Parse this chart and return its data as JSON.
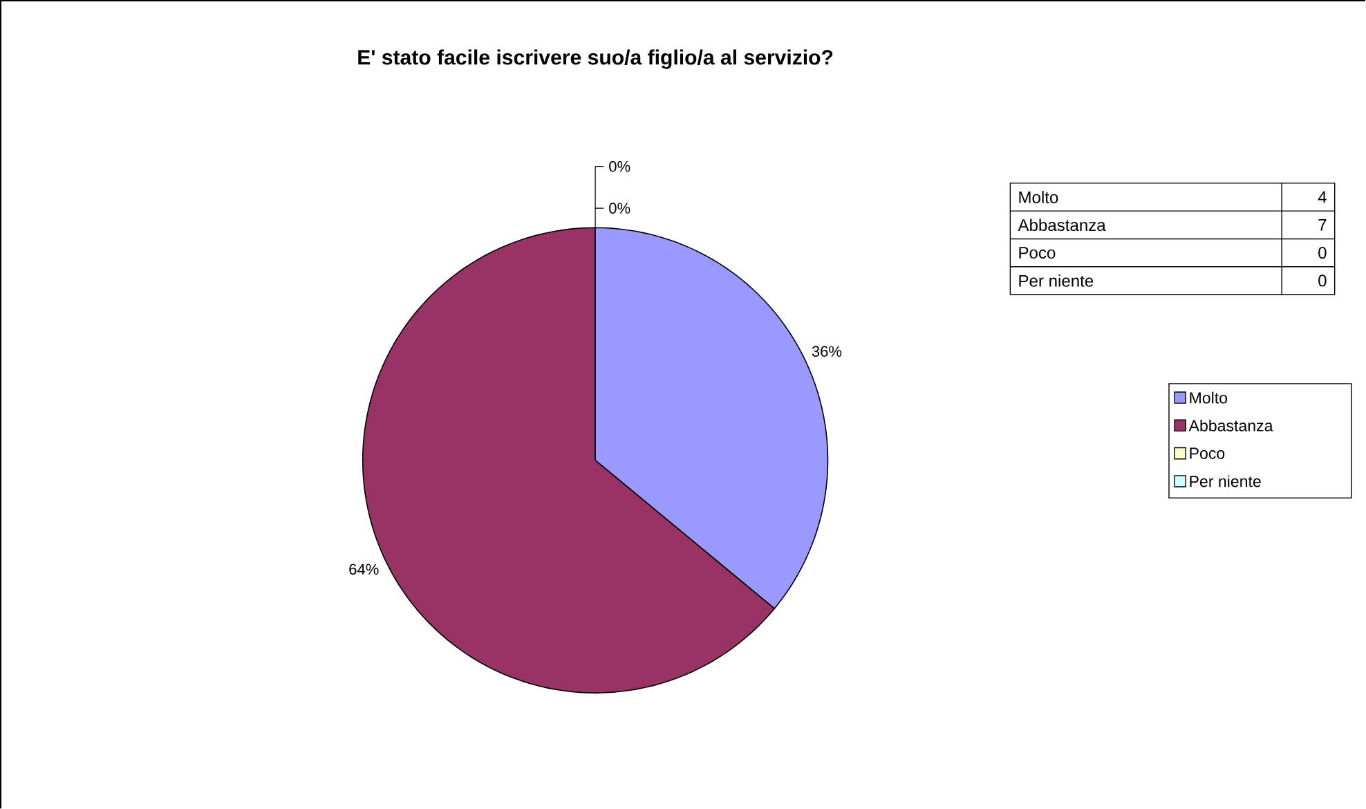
{
  "chart_data": {
    "type": "pie",
    "title": "E' stato facile iscrivere suo/a figlio/a al servizio?",
    "categories": [
      "Molto",
      "Abbastanza",
      "Poco",
      "Per niente"
    ],
    "values": [
      36,
      64,
      0,
      0
    ],
    "value_labels": [
      "36%",
      "64%",
      "0%",
      "0%"
    ],
    "colors": [
      "#9999ff",
      "#993366",
      "#ffffcc",
      "#ccffff"
    ],
    "annotations": [
      "4",
      "7",
      "0",
      "0"
    ],
    "legend": "right"
  }
}
